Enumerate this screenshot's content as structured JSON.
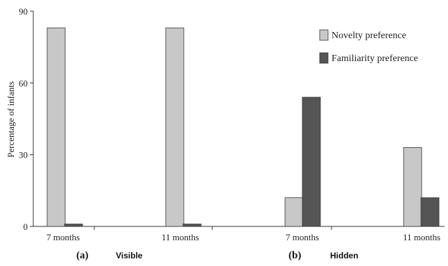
{
  "chart_data": {
    "type": "bar",
    "categories": [
      "7 months",
      "11 months",
      "7 months",
      "11 months"
    ],
    "series": [
      {
        "name": "Novelty preference",
        "values": [
          83,
          83,
          12,
          33
        ],
        "color": "#c8c8c8"
      },
      {
        "name": "Familiarity preference",
        "values": [
          1,
          1,
          54,
          12
        ],
        "color": "#555555"
      }
    ],
    "ylabel": "Percentage of infants",
    "ylim": [
      0,
      90
    ],
    "yticks": [
      "0",
      "30",
      "60",
      "90"
    ],
    "legend": "top-right",
    "grid": false,
    "panels": [
      {
        "letter": "(a)",
        "name": "Visible"
      },
      {
        "letter": "(b)",
        "name": "Hidden"
      }
    ]
  }
}
